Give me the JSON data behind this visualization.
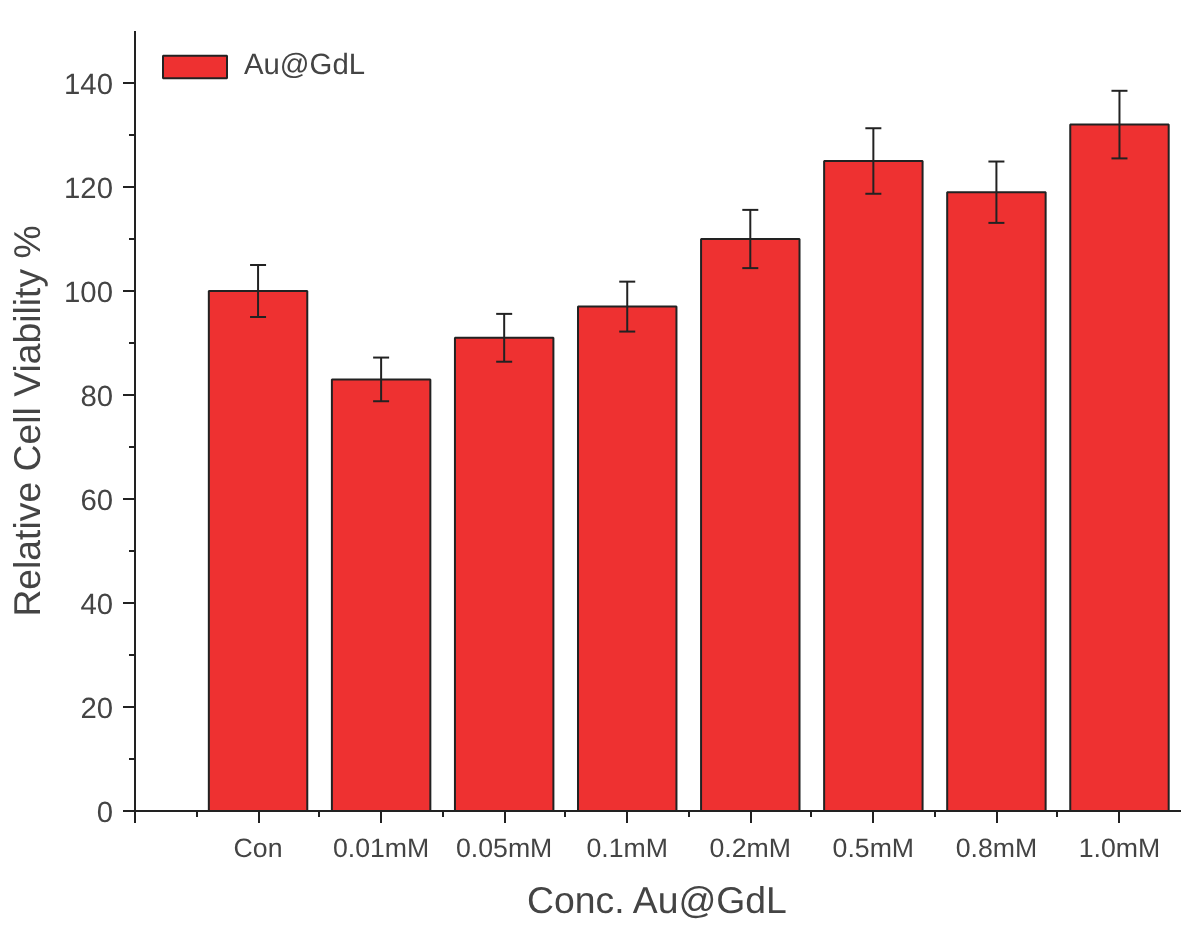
{
  "chart_data": {
    "type": "bar",
    "xlabel": "Conc. Au@GdL",
    "ylabel": "Relative Cell Viability %",
    "categories": [
      "Con",
      "0.01mM",
      "0.05mM",
      "0.1mM",
      "0.2mM",
      "0.5mM",
      "0.8mM",
      "1.0mM"
    ],
    "series": [
      {
        "name": "Au@GdL",
        "color": "#ee3131",
        "values": [
          100,
          83,
          91,
          97,
          110,
          125,
          119,
          132
        ],
        "errors": [
          5,
          4.2,
          4.6,
          4.8,
          5.6,
          6.3,
          5.9,
          6.5
        ]
      }
    ],
    "ylim": [
      0,
      150
    ],
    "yticks": [
      0,
      20,
      40,
      60,
      80,
      100,
      120,
      140
    ],
    "grid": false,
    "legend": "top left"
  }
}
